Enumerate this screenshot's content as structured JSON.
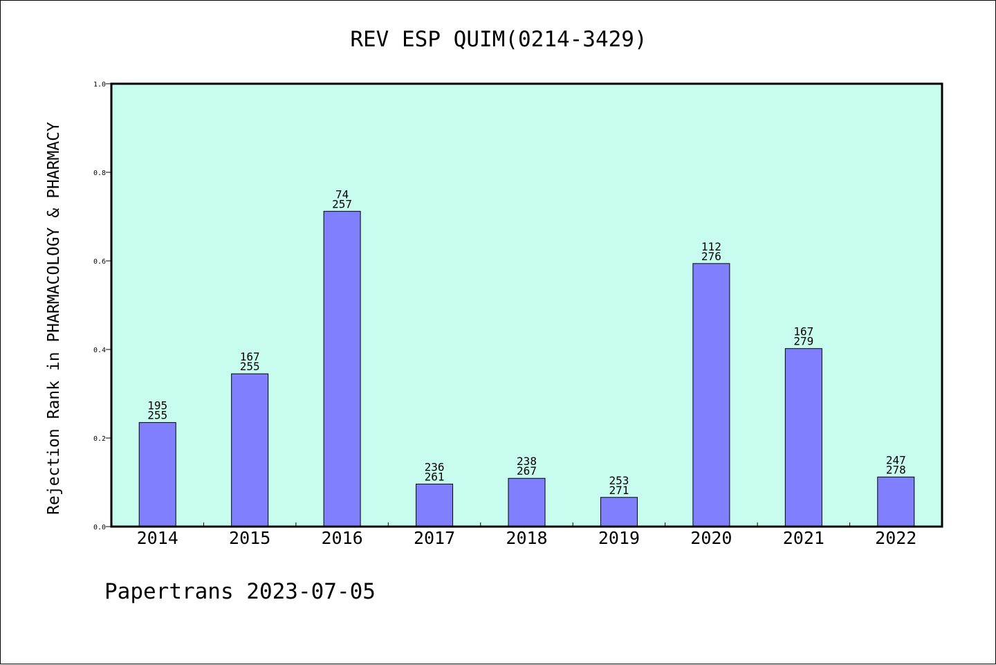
{
  "chart_data": {
    "type": "bar",
    "title": "REV ESP QUIM(0214-3429)",
    "xlabel": "",
    "ylabel": "Rejection Rank in PHARMACOLOGY & PHARMACY",
    "categories": [
      "2014",
      "2015",
      "2016",
      "2017",
      "2018",
      "2019",
      "2020",
      "2021",
      "2022"
    ],
    "values": [
      0.235,
      0.345,
      0.712,
      0.096,
      0.109,
      0.066,
      0.594,
      0.402,
      0.112
    ],
    "rank": [
      "195",
      "167",
      "74",
      "236",
      "238",
      "253",
      "112",
      "167",
      "247"
    ],
    "total": [
      "255",
      "255",
      "257",
      "261",
      "267",
      "271",
      "276",
      "279",
      "278"
    ],
    "ylim": [
      0,
      1.0
    ],
    "yticks": [
      "0.0",
      "0.2",
      "0.4",
      "0.6",
      "0.8",
      "1.0"
    ],
    "grid": false,
    "colors": {
      "bar": "#8080ff",
      "plot_background": "#c8fcee",
      "axis": "#000000"
    }
  },
  "footer": "Papertrans 2023-07-05"
}
